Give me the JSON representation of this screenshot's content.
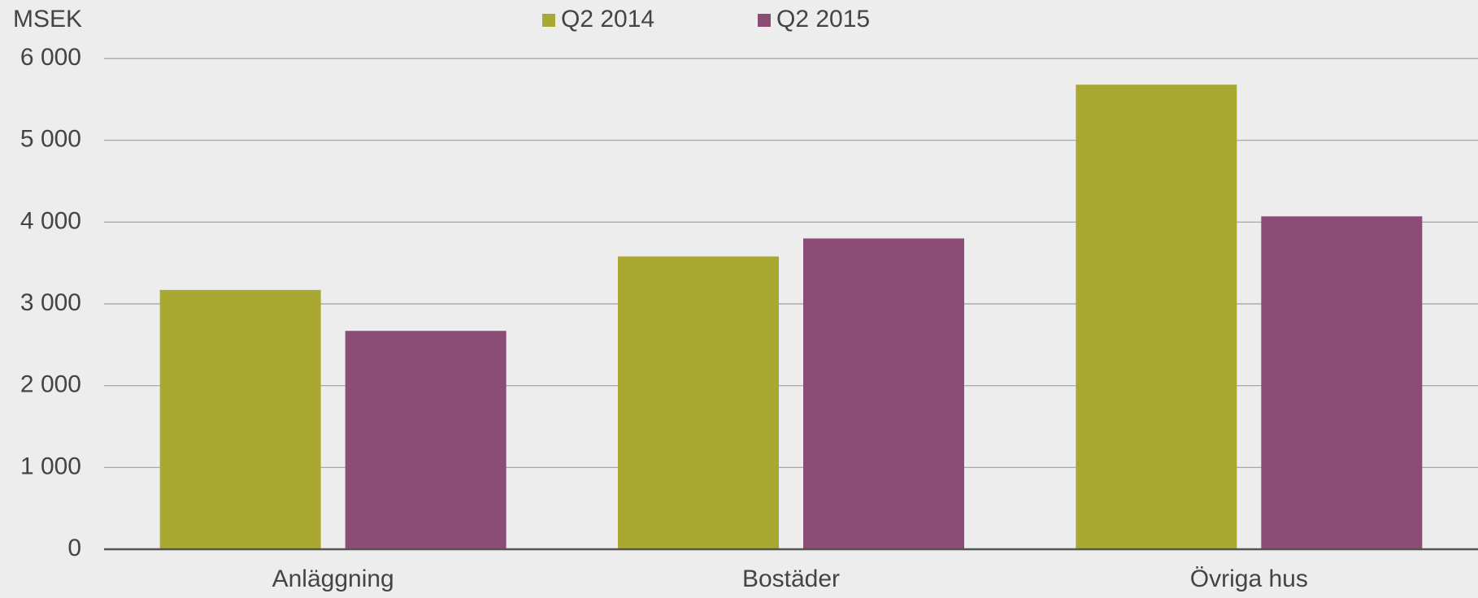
{
  "chart_data": {
    "type": "bar",
    "y_label": "MSEK",
    "categories": [
      "Anläggning",
      "Bostäder",
      "Övriga hus"
    ],
    "series": [
      {
        "name": "Q2 2014",
        "color": "#a8a832",
        "values": [
          3170,
          3580,
          5680
        ]
      },
      {
        "name": "Q2 2015",
        "color": "#8b4d75",
        "values": [
          2670,
          3800,
          4070
        ]
      }
    ],
    "ylim": [
      0,
      6000
    ],
    "yticks": [
      0,
      {
        "value": 1000,
        "label": "1 000"
      },
      {
        "value": 2000,
        "label": "2 000"
      },
      {
        "value": 3000,
        "label": "3 000"
      },
      {
        "value": 4000,
        "label": "4 000"
      },
      {
        "value": 5000,
        "label": "5 000"
      },
      {
        "value": 6000,
        "label": "6 000"
      }
    ],
    "grid": true,
    "legend": "top"
  }
}
